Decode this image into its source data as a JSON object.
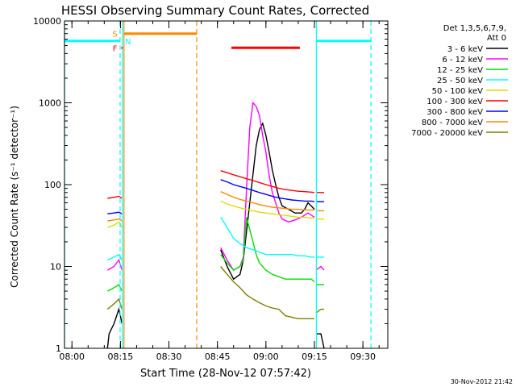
{
  "chart_data": {
    "type": "line",
    "title": "HESSI Observing Summary Count Rates, Corrected",
    "xlabel": "Start Time (28-Nov-12 07:57:42)",
    "ylabel": "Corrected Count Rate (s⁻¹ detector⁻¹)",
    "yscale": "log",
    "ylim": [
      1,
      10000
    ],
    "xlim_minutes": [
      -2.3,
      97.7
    ],
    "x_ticks": [
      {
        "minute": 0,
        "label": "08:00"
      },
      {
        "minute": 15,
        "label": "08:15"
      },
      {
        "minute": 30,
        "label": "08:30"
      },
      {
        "minute": 45,
        "label": "08:45"
      },
      {
        "minute": 60,
        "label": "09:00"
      },
      {
        "minute": 75,
        "label": "09:15"
      },
      {
        "minute": 90,
        "label": "09:30"
      }
    ],
    "y_ticks": [
      {
        "value": 1,
        "label": "1"
      },
      {
        "value": 10,
        "label": "10"
      },
      {
        "value": 100,
        "label": "100"
      },
      {
        "value": 1000,
        "label": "1000"
      },
      {
        "value": 10000,
        "label": "10000"
      }
    ],
    "legend_header": [
      "Det 1,3,5,6,7,9,",
      "Att 0"
    ],
    "legend_position": "right",
    "footer_date": "30-Nov-2012 21:42",
    "series": [
      {
        "name": "3 - 6 keV",
        "color": "#000000",
        "segments": [
          [
            [
              11,
              1
            ],
            [
              11.5,
              1.5
            ],
            [
              13,
              2
            ],
            [
              14.5,
              3
            ],
            [
              15.5,
              2
            ]
          ],
          [
            [
              46,
              16
            ],
            [
              48,
              10
            ],
            [
              50,
              7
            ],
            [
              52,
              8
            ],
            [
              53,
              12
            ],
            [
              55,
              60
            ],
            [
              57,
              300
            ],
            [
              58,
              470
            ],
            [
              59,
              560
            ],
            [
              60,
              400
            ],
            [
              61,
              250
            ],
            [
              62,
              150
            ],
            [
              63,
              100
            ],
            [
              64,
              70
            ],
            [
              65,
              55
            ],
            [
              67,
              50
            ],
            [
              69,
              45
            ],
            [
              71,
              45
            ],
            [
              72,
              50
            ],
            [
              73,
              60
            ],
            [
              74,
              55
            ],
            [
              75,
              50
            ]
          ],
          [
            [
              75.5,
              1.5
            ],
            [
              77,
              1.5
            ],
            [
              78,
              1
            ]
          ]
        ]
      },
      {
        "name": "6 - 12 keV",
        "color": "#ff00ff",
        "segments": [
          [
            [
              11,
              9
            ],
            [
              13,
              10
            ],
            [
              14.5,
              12
            ],
            [
              15.5,
              9
            ]
          ],
          [
            [
              46,
              17
            ],
            [
              48,
              12
            ],
            [
              50,
              9
            ],
            [
              52,
              10
            ],
            [
              53,
              13
            ],
            [
              54,
              90
            ],
            [
              55,
              500
            ],
            [
              56,
              1000
            ],
            [
              57,
              900
            ],
            [
              58,
              700
            ],
            [
              59,
              400
            ],
            [
              60,
              250
            ],
            [
              61,
              130
            ],
            [
              62,
              80
            ],
            [
              63,
              60
            ],
            [
              64,
              45
            ],
            [
              65,
              38
            ],
            [
              67,
              35
            ],
            [
              69,
              37
            ],
            [
              71,
              40
            ],
            [
              73,
              45
            ],
            [
              75,
              40
            ]
          ],
          [
            [
              75.5,
              9
            ],
            [
              77,
              10
            ],
            [
              78,
              9
            ]
          ]
        ]
      },
      {
        "name": "12 - 25 keV",
        "color": "#00dd00",
        "segments": [
          [
            [
              11,
              5
            ],
            [
              13,
              5.5
            ],
            [
              14.5,
              6
            ],
            [
              15.5,
              5
            ]
          ],
          [
            [
              46,
              14
            ],
            [
              48,
              11
            ],
            [
              50,
              9
            ],
            [
              52,
              10
            ],
            [
              53,
              12
            ],
            [
              54,
              40
            ],
            [
              55,
              28
            ],
            [
              56,
              20
            ],
            [
              57,
              14
            ],
            [
              58,
              11
            ],
            [
              60,
              9
            ],
            [
              62,
              8
            ],
            [
              64,
              7.5
            ],
            [
              66,
              7
            ],
            [
              68,
              7
            ],
            [
              70,
              7
            ],
            [
              72,
              7
            ],
            [
              74,
              7
            ],
            [
              75,
              6.5
            ]
          ],
          [
            [
              75.5,
              6
            ],
            [
              77,
              6
            ],
            [
              78,
              6
            ]
          ]
        ]
      },
      {
        "name": "25 - 50 keV",
        "color": "#00ffff",
        "segments": [
          [
            [
              11,
              12
            ],
            [
              13,
              13
            ],
            [
              14.5,
              14
            ],
            [
              15.5,
              12
            ]
          ],
          [
            [
              46,
              40
            ],
            [
              48,
              30
            ],
            [
              50,
              22
            ],
            [
              52,
              19
            ],
            [
              54,
              17
            ],
            [
              56,
              16
            ],
            [
              58,
              15
            ],
            [
              60,
              14
            ],
            [
              62,
              14
            ],
            [
              64,
              14
            ],
            [
              66,
              14
            ],
            [
              68,
              14
            ],
            [
              70,
              13.5
            ],
            [
              72,
              13.5
            ],
            [
              74,
              13
            ],
            [
              75,
              13
            ]
          ],
          [
            [
              75.5,
              13
            ],
            [
              77,
              13
            ],
            [
              78,
              13
            ]
          ]
        ]
      },
      {
        "name": "50 - 100 keV",
        "color": "#dddd00",
        "segments": [
          [
            [
              11,
              30
            ],
            [
              13,
              32
            ],
            [
              14.5,
              35
            ],
            [
              15.5,
              30
            ]
          ],
          [
            [
              46,
              63
            ],
            [
              48,
              58
            ],
            [
              50,
              55
            ],
            [
              52,
              52
            ],
            [
              54,
              50
            ],
            [
              56,
              48
            ],
            [
              58,
              46
            ],
            [
              60,
              45
            ],
            [
              62,
              44
            ],
            [
              64,
              43
            ],
            [
              66,
              42
            ],
            [
              68,
              41
            ],
            [
              70,
              40
            ],
            [
              72,
              40
            ],
            [
              74,
              39
            ],
            [
              75,
              39
            ]
          ],
          [
            [
              75.5,
              38
            ],
            [
              77,
              38
            ],
            [
              78,
              38
            ]
          ]
        ]
      },
      {
        "name": "100 - 300 keV",
        "color": "#ff0000",
        "segments": [
          [
            [
              11,
              68
            ],
            [
              13,
              70
            ],
            [
              14.5,
              72
            ],
            [
              15.5,
              68
            ]
          ],
          [
            [
              46,
              148
            ],
            [
              48,
              140
            ],
            [
              50,
              132
            ],
            [
              52,
              125
            ],
            [
              54,
              118
            ],
            [
              56,
              112
            ],
            [
              58,
              106
            ],
            [
              60,
              100
            ],
            [
              62,
              95
            ],
            [
              64,
              90
            ],
            [
              66,
              87
            ],
            [
              68,
              85
            ],
            [
              70,
              83
            ],
            [
              72,
              82
            ],
            [
              74,
              81
            ],
            [
              75,
              80
            ]
          ],
          [
            [
              75.5,
              80
            ],
            [
              77,
              80
            ],
            [
              78,
              80
            ]
          ]
        ]
      },
      {
        "name": "300 - 800 keV",
        "color": "#0000ff",
        "segments": [
          [
            [
              11,
              44
            ],
            [
              13,
              45
            ],
            [
              14.5,
              46
            ],
            [
              15.5,
              44
            ]
          ],
          [
            [
              46,
              115
            ],
            [
              48,
              108
            ],
            [
              50,
              100
            ],
            [
              52,
              95
            ],
            [
              54,
              90
            ],
            [
              56,
              85
            ],
            [
              58,
              80
            ],
            [
              60,
              76
            ],
            [
              62,
              72
            ],
            [
              64,
              69
            ],
            [
              66,
              67
            ],
            [
              68,
              65
            ],
            [
              70,
              64
            ],
            [
              72,
              63
            ],
            [
              74,
              63
            ],
            [
              75,
              62
            ]
          ],
          [
            [
              75.5,
              62
            ],
            [
              77,
              62
            ],
            [
              78,
              62
            ]
          ]
        ]
      },
      {
        "name": "800 - 7000 keV",
        "color": "#ff8800",
        "segments": [
          [
            [
              11,
              36
            ],
            [
              13,
              37
            ],
            [
              14.5,
              38
            ],
            [
              15.5,
              36
            ]
          ],
          [
            [
              46,
              82
            ],
            [
              48,
              76
            ],
            [
              50,
              70
            ],
            [
              52,
              66
            ],
            [
              54,
              63
            ],
            [
              56,
              60
            ],
            [
              58,
              57
            ],
            [
              60,
              55
            ],
            [
              62,
              53
            ],
            [
              64,
              52
            ],
            [
              66,
              51
            ],
            [
              68,
              50
            ],
            [
              70,
              50
            ],
            [
              72,
              49
            ],
            [
              74,
              49
            ],
            [
              75,
              49
            ]
          ],
          [
            [
              75.5,
              48
            ],
            [
              77,
              48
            ],
            [
              78,
              48
            ]
          ]
        ]
      },
      {
        "name": "7000 - 20000 keV",
        "color": "#808000",
        "segments": [
          [
            [
              11,
              3
            ],
            [
              13,
              3.5
            ],
            [
              14.5,
              4
            ],
            [
              15.5,
              3
            ]
          ],
          [
            [
              46,
              10
            ],
            [
              48,
              8
            ],
            [
              50,
              6.5
            ],
            [
              52,
              5.5
            ],
            [
              54,
              4.5
            ],
            [
              56,
              4
            ],
            [
              58,
              3.6
            ],
            [
              60,
              3.3
            ],
            [
              62,
              3.1
            ],
            [
              64,
              3
            ],
            [
              66,
              2.5
            ],
            [
              68,
              2.4
            ],
            [
              70,
              2.3
            ],
            [
              72,
              2.3
            ],
            [
              74,
              2.3
            ],
            [
              75,
              2.3
            ]
          ],
          [
            [
              75.5,
              2.7
            ],
            [
              77,
              3
            ],
            [
              78,
              3
            ]
          ]
        ]
      }
    ],
    "flags": {
      "S": {
        "label": "S",
        "color": "#ff8800",
        "x_start": 16.1,
        "x_end": 38.6,
        "y": 7000
      },
      "F": {
        "label": "F",
        "color": "#ff0000",
        "x_start": 15.3,
        "x_end": 15.7,
        "y": 4700,
        "bar_start": 49.3,
        "bar_end": 70.5
      },
      "N": {
        "label": "N",
        "color": "#00ffff",
        "x_start": 14.9,
        "y": 5700
      }
    },
    "night_lines": [
      {
        "x": -2.3,
        "color": "#00ffff",
        "dashed": false
      },
      {
        "x": 15.6,
        "color": "#00ffff",
        "dashed": false
      },
      {
        "x": 14.9,
        "color": "#00ffff",
        "dashed": true
      },
      {
        "x": 75.6,
        "color": "#00ffff",
        "dashed": false
      },
      {
        "x": 92.5,
        "color": "#00ffff",
        "dashed": true
      }
    ],
    "night_bars": [
      {
        "x_start": -2.3,
        "x_end": 14.9,
        "y": 5700,
        "color": "#00ffff"
      },
      {
        "x_start": 75.6,
        "x_end": 92.5,
        "y": 5700,
        "color": "#00ffff"
      }
    ],
    "saa_lines": [
      {
        "x": 16.1,
        "color": "#ff8800",
        "dashed": false
      },
      {
        "x": 38.6,
        "color": "#ff8800",
        "dashed": true
      }
    ]
  }
}
